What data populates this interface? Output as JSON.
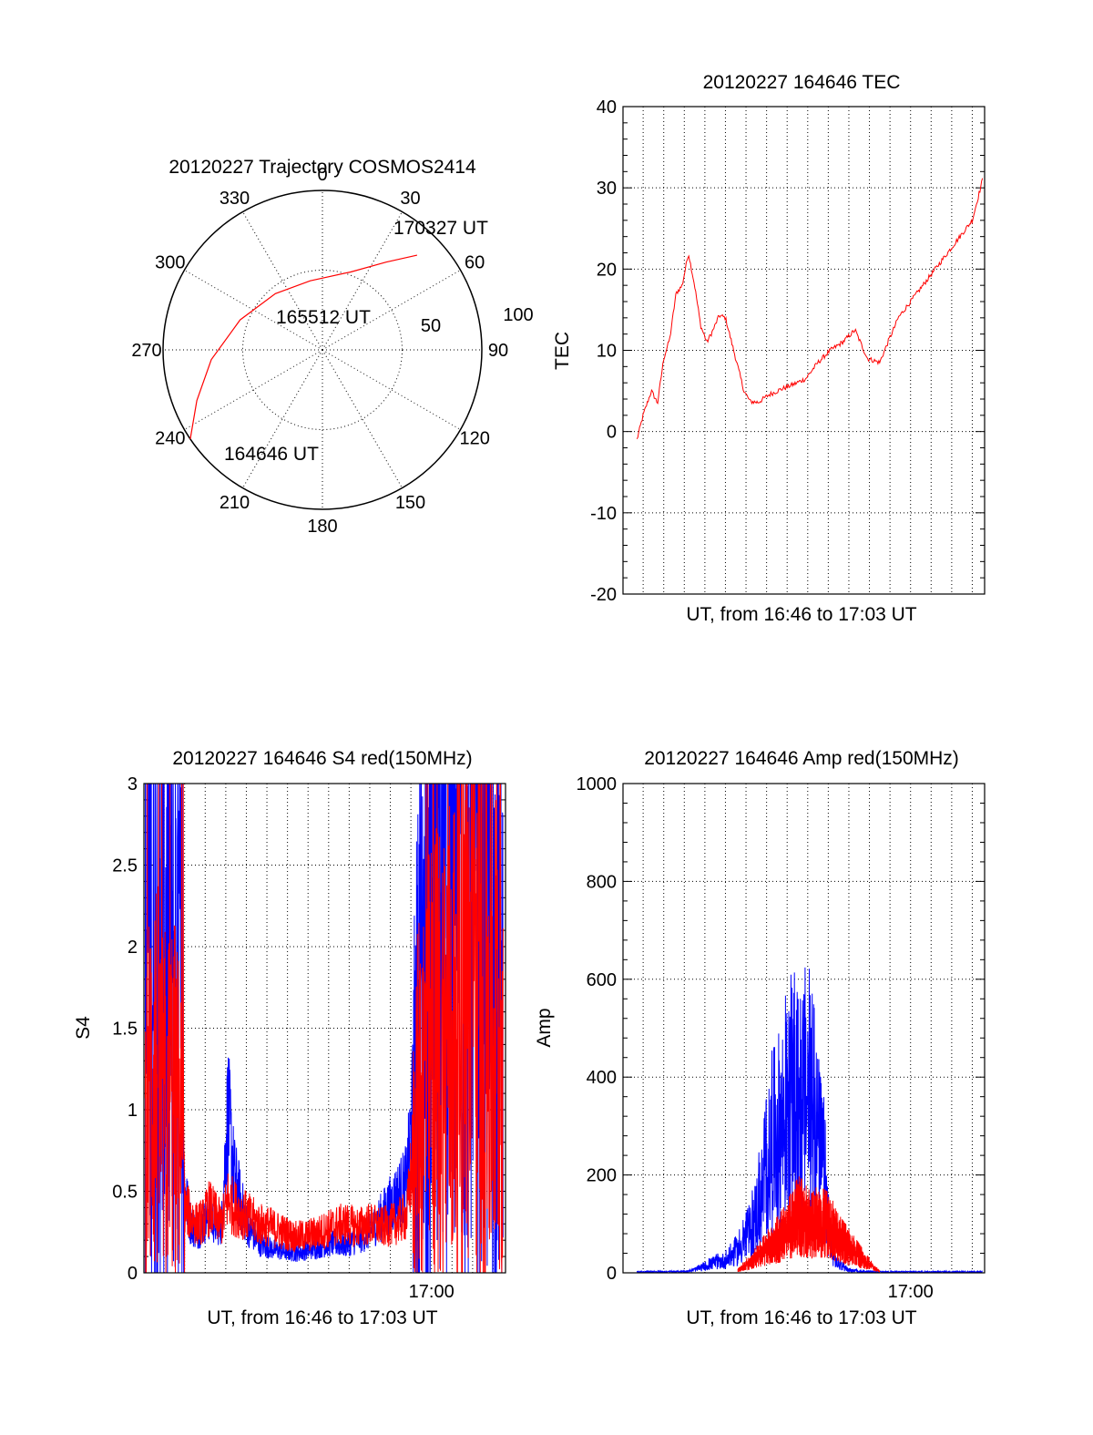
{
  "chart_data": [
    {
      "type": "polar",
      "title": "20120227 Trajectory COSMOS2414",
      "azimuth_labels": [
        "0",
        "30",
        "60",
        "90",
        "120",
        "150",
        "180",
        "210",
        "240",
        "270",
        "300",
        "330"
      ],
      "elevation_labels": [
        "50",
        "100"
      ],
      "series": [
        {
          "color": "#ff0000",
          "points": [
            {
              "az": 236,
              "r": 100
            },
            {
              "az": 248,
              "r": 85
            },
            {
              "az": 265,
              "r": 70
            },
            {
              "az": 290,
              "r": 55
            },
            {
              "az": 320,
              "r": 46
            },
            {
              "az": 350,
              "r": 44
            },
            {
              "az": 20,
              "r": 52
            },
            {
              "az": 36,
              "r": 68
            },
            {
              "az": 45,
              "r": 84
            }
          ]
        }
      ],
      "annotations": [
        "164646 UT",
        "165512 UT",
        "170327 UT"
      ]
    },
    {
      "type": "line",
      "title": "20120227 164646 TEC",
      "xlabel": "UT, from 16:46 to 17:03 UT",
      "ylabel": "TEC",
      "xlim": [
        16.767,
        17.06
      ],
      "ylim": [
        -20,
        40
      ],
      "yticks": [
        "-20",
        "-10",
        "0",
        "10",
        "20",
        "30",
        "40"
      ],
      "series": [
        {
          "color": "#ff0000",
          "x": [
            16.7783,
            16.7833,
            16.79,
            16.795,
            16.8,
            16.805,
            16.81,
            16.815,
            16.82,
            16.825,
            16.83,
            16.835,
            16.84,
            16.845,
            16.85,
            16.855,
            16.86,
            16.865,
            16.87,
            16.8767,
            16.885,
            16.895,
            16.905,
            16.915,
            16.925,
            16.935,
            16.945,
            16.955,
            16.965,
            16.975,
            16.983,
            16.986,
            16.99,
            16.995,
            17.0,
            17.01,
            17.02,
            17.03,
            17.04,
            17.05,
            17.0583
          ],
          "values": [
            -1,
            2,
            5,
            3.5,
            9,
            11.5,
            17,
            18,
            22,
            18,
            13,
            11,
            12.5,
            14.3,
            14,
            11,
            8,
            5,
            3.7,
            3.6,
            4.5,
            5.2,
            5.8,
            6.5,
            8.5,
            10,
            11,
            12.5,
            9,
            8.5,
            11.5,
            12.5,
            14,
            15,
            16,
            18,
            20,
            22,
            24,
            26,
            31
          ]
        }
      ]
    },
    {
      "type": "line",
      "title": "20120227 164646 S4 red(150MHz)",
      "xlabel": "UT, from 16:46 to 17:03 UT",
      "ylabel": "S4",
      "xtick_label": "17:00",
      "xlim": [
        16.767,
        17.06
      ],
      "ylim": [
        0,
        3
      ],
      "yticks": [
        "0",
        "0.5",
        "1",
        "1.5",
        "2",
        "2.5",
        "3"
      ],
      "series": [
        {
          "color": "#0000ff",
          "x": [
            16.768,
            16.775,
            16.782,
            16.79,
            16.797,
            16.8,
            16.805,
            16.81,
            16.815,
            16.82,
            16.825,
            16.83,
            16.835,
            16.84,
            16.85,
            16.86,
            16.87,
            16.88,
            16.89,
            16.9,
            16.91,
            16.92,
            16.93,
            16.94,
            16.95,
            16.96,
            16.97,
            16.98,
            16.99,
            17.0,
            17.01,
            17.02,
            17.03,
            17.04,
            17.05,
            17.058
          ],
          "values": [
            2.2,
            1.9,
            2.0,
            1.8,
            1.7,
            0.5,
            0.3,
            0.25,
            0.3,
            0.35,
            0.3,
            0.3,
            1.0,
            0.6,
            0.3,
            0.18,
            0.15,
            0.13,
            0.12,
            0.14,
            0.16,
            0.18,
            0.17,
            0.2,
            0.25,
            0.35,
            0.45,
            0.55,
            1.5,
            2.2,
            2.0,
            2.4,
            2.5,
            2.0,
            1.8,
            1.7
          ]
        },
        {
          "color": "#ff0000",
          "x": [
            16.768,
            16.775,
            16.782,
            16.79,
            16.797,
            16.8,
            16.805,
            16.81,
            16.815,
            16.82,
            16.825,
            16.83,
            16.835,
            16.84,
            16.85,
            16.86,
            16.87,
            16.88,
            16.89,
            16.9,
            16.91,
            16.92,
            16.93,
            16.94,
            16.95,
            16.96,
            16.97,
            16.98,
            16.99,
            17.0,
            17.01,
            17.02,
            17.03,
            17.04,
            17.05,
            17.058
          ],
          "values": [
            0.9,
            1.3,
            1.0,
            1.1,
            0.9,
            0.4,
            0.35,
            0.3,
            0.32,
            0.4,
            0.35,
            0.3,
            0.45,
            0.4,
            0.35,
            0.3,
            0.28,
            0.25,
            0.22,
            0.23,
            0.25,
            0.28,
            0.3,
            0.28,
            0.3,
            0.28,
            0.3,
            0.35,
            1.1,
            1.3,
            1.4,
            1.5,
            1.7,
            1.6,
            1.5,
            1.4
          ]
        }
      ]
    },
    {
      "type": "line",
      "title": "20120227 164646 Amp red(150MHz)",
      "xlabel": "UT, from 16:46 to 17:03 UT",
      "ylabel": "Amp",
      "xtick_label": "17:00",
      "xlim": [
        16.767,
        17.06
      ],
      "ylim": [
        0,
        1000
      ],
      "yticks": [
        "0",
        "200",
        "400",
        "600",
        "800",
        "1000"
      ],
      "series": [
        {
          "color": "#0000ff",
          "x": [
            16.7783,
            16.8,
            16.82,
            16.83,
            16.84,
            16.85,
            16.86,
            16.87,
            16.88,
            16.89,
            16.9,
            16.905,
            16.91,
            16.915,
            16.92,
            16.925,
            16.93,
            16.935,
            16.94,
            16.95,
            16.96,
            16.97,
            16.98,
            16.99,
            17.0,
            17.02,
            17.04,
            17.0583
          ],
          "values": [
            2,
            2,
            3,
            10,
            20,
            25,
            45,
            80,
            160,
            280,
            320,
            350,
            300,
            380,
            320,
            270,
            210,
            60,
            20,
            5,
            3,
            2,
            2,
            2,
            2,
            2,
            2,
            2
          ]
        },
        {
          "color": "#ff0000",
          "x": [
            16.86,
            16.87,
            16.88,
            16.89,
            16.9,
            16.905,
            16.91,
            16.915,
            16.92,
            16.925,
            16.93,
            16.935,
            16.94,
            16.95,
            16.96,
            16.97,
            16.975
          ],
          "values": [
            5,
            20,
            40,
            60,
            80,
            100,
            110,
            100,
            90,
            100,
            95,
            90,
            70,
            50,
            30,
            10,
            3
          ]
        }
      ]
    }
  ]
}
